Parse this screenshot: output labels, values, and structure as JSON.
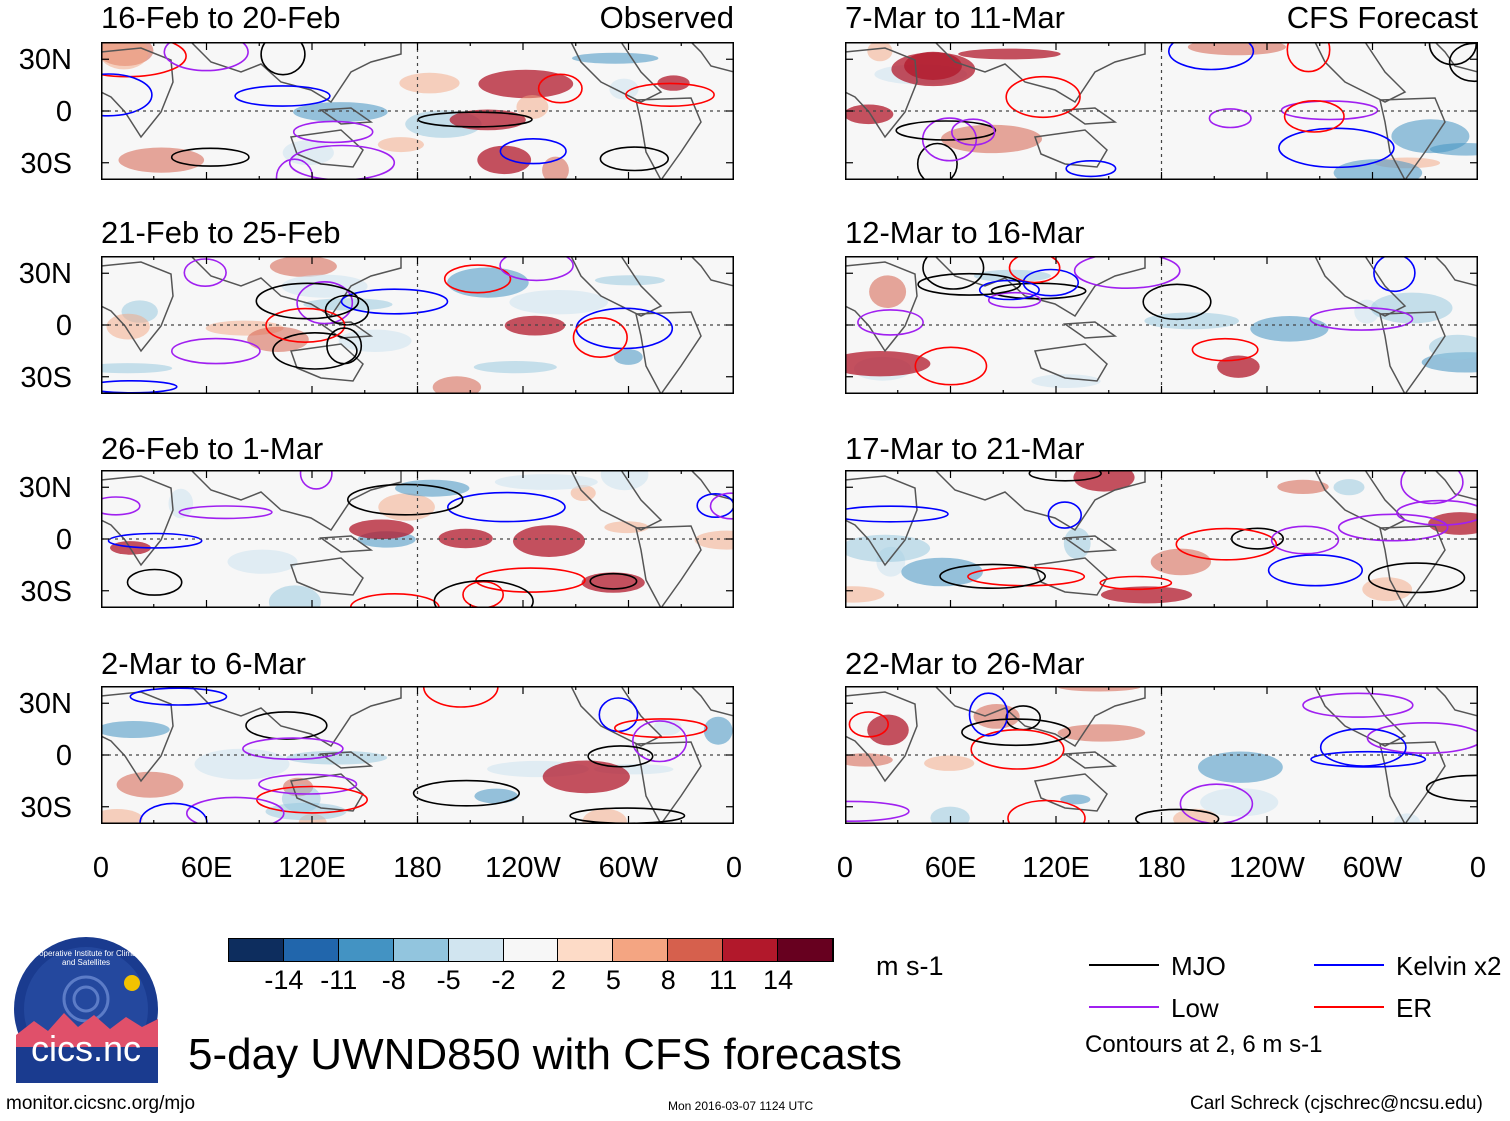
{
  "panels": [
    {
      "title": "16-Feb to 20-Feb",
      "tag": "Observed"
    },
    {
      "title": "21-Feb to 25-Feb",
      "tag": ""
    },
    {
      "title": "26-Feb to 1-Mar",
      "tag": ""
    },
    {
      "title": "2-Mar to 6-Mar",
      "tag": ""
    },
    {
      "title": "7-Mar to 11-Mar",
      "tag": "CFS Forecast"
    },
    {
      "title": "12-Mar to 16-Mar",
      "tag": ""
    },
    {
      "title": "17-Mar to 21-Mar",
      "tag": ""
    },
    {
      "title": "22-Mar to 26-Mar",
      "tag": ""
    }
  ],
  "lat_labels": [
    "30N",
    "0",
    "30S"
  ],
  "lon_labels": [
    "0",
    "60E",
    "120E",
    "180",
    "120W",
    "60W",
    "0"
  ],
  "colorbar": {
    "colors": [
      "#0d2d5e",
      "#2166ac",
      "#4393c3",
      "#92c5de",
      "#d1e5f0",
      "#f7f7f7",
      "#fddbc7",
      "#f4a582",
      "#d6604d",
      "#b2182b",
      "#67001f"
    ],
    "labels": [
      "-14",
      "-11",
      "-8",
      "-5",
      "-2",
      "2",
      "5",
      "8",
      "11",
      "14"
    ],
    "units": "m s-1"
  },
  "legend": {
    "items": [
      {
        "label": "MJO",
        "color": "#000000"
      },
      {
        "label": "Kelvin x2",
        "color": "#0000ff"
      },
      {
        "label": "Low",
        "color": "#a020f0"
      },
      {
        "label": "ER",
        "color": "#ff0000"
      }
    ],
    "note": "Contours at 2, 6 m s-1"
  },
  "logo_text": "cics.nc",
  "logo_ring_text": "Cooperative Institute for Climate and Satellites",
  "main_title": "5-day UWND850 with CFS forecasts",
  "footer": {
    "url": "monitor.cicsnc.org/mjo",
    "timestamp": "Mon 2016-03-07 1124 UTC",
    "author": "Carl Schreck (cjschrec@ncsu.edu)"
  }
}
